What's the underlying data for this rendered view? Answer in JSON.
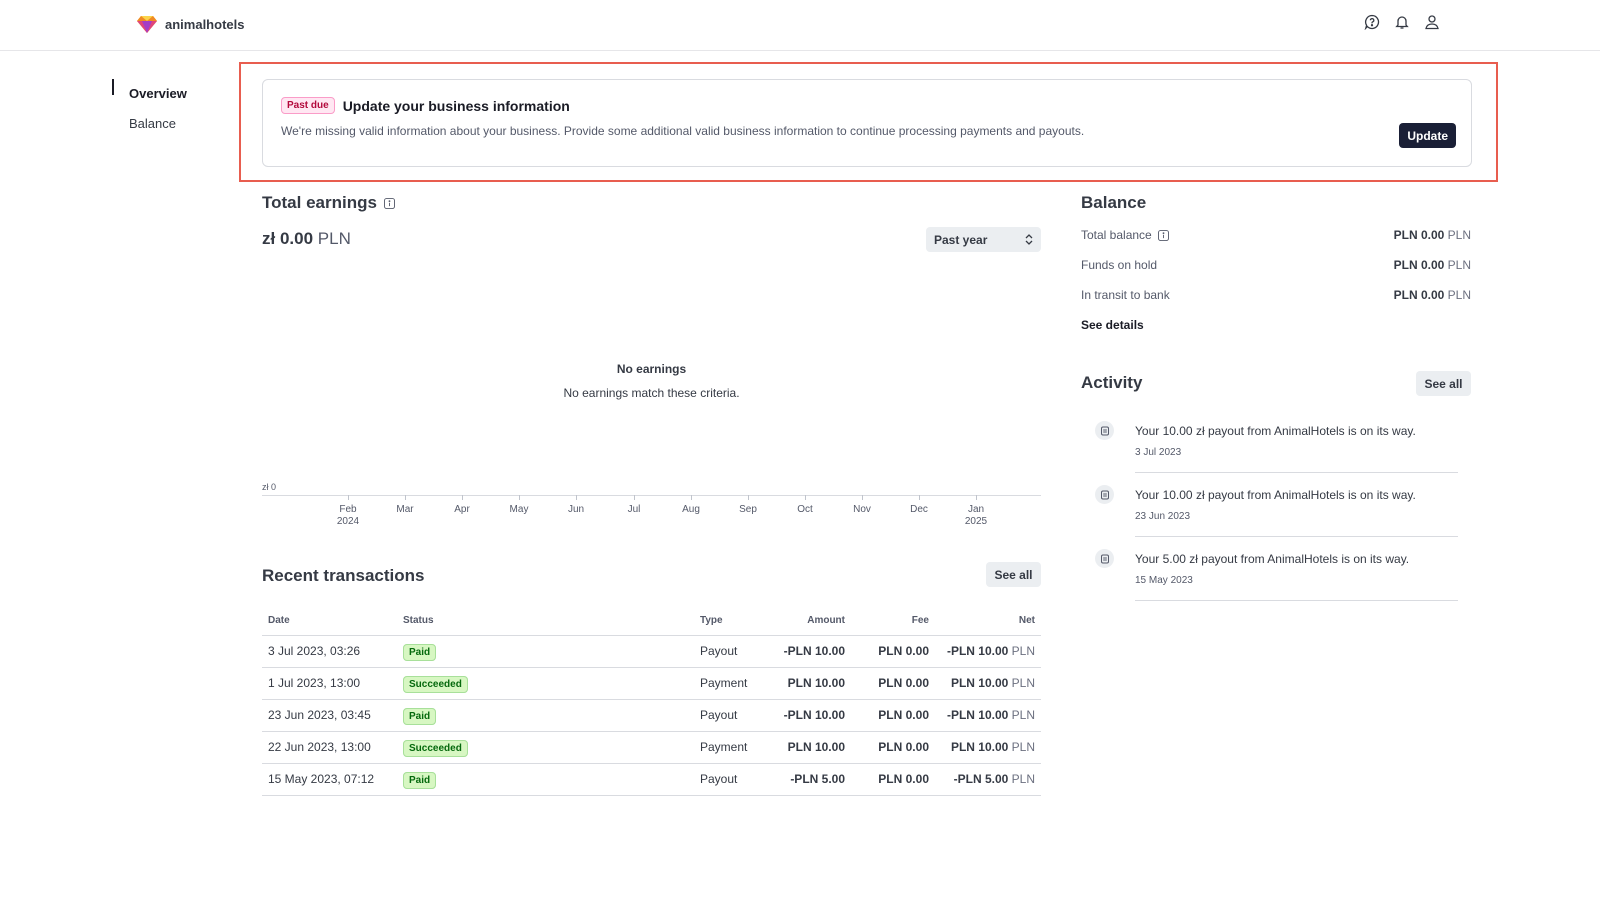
{
  "header": {
    "brand": "animalhotels",
    "icons": [
      "help-icon",
      "bell-icon",
      "user-icon"
    ]
  },
  "sidebar": {
    "items": [
      {
        "label": "Overview",
        "active": true
      },
      {
        "label": "Balance",
        "active": false
      }
    ]
  },
  "alert": {
    "badge": "Past due",
    "title": "Update your business information",
    "text": "We're missing valid information about your business. Provide some additional valid business information to continue processing payments and payouts.",
    "button": "Update"
  },
  "earnings": {
    "title": "Total earnings",
    "amount": "zł 0.00",
    "currency": "PLN",
    "period": "Past year",
    "empty_title": "No earnings",
    "empty_text": "No earnings match these criteria.",
    "y_label": "zł 0",
    "x_ticks": [
      {
        "label": "Feb",
        "sub": "2024"
      },
      {
        "label": "Mar",
        "sub": ""
      },
      {
        "label": "Apr",
        "sub": ""
      },
      {
        "label": "May",
        "sub": ""
      },
      {
        "label": "Jun",
        "sub": ""
      },
      {
        "label": "Jul",
        "sub": ""
      },
      {
        "label": "Aug",
        "sub": ""
      },
      {
        "label": "Sep",
        "sub": ""
      },
      {
        "label": "Oct",
        "sub": ""
      },
      {
        "label": "Nov",
        "sub": ""
      },
      {
        "label": "Dec",
        "sub": ""
      },
      {
        "label": "Jan",
        "sub": "2025"
      }
    ]
  },
  "transactions": {
    "title": "Recent transactions",
    "see_all": "See all",
    "columns": [
      "Date",
      "Status",
      "Type",
      "Amount",
      "Fee",
      "Net"
    ],
    "rows": [
      {
        "date": "3 Jul 2023, 03:26",
        "status": "Paid",
        "type": "Payout",
        "amount": "-PLN 10.00",
        "fee": "PLN 0.00",
        "net": "-PLN 10.00",
        "net_unit": "PLN"
      },
      {
        "date": "1 Jul 2023, 13:00",
        "status": "Succeeded",
        "type": "Payment",
        "amount": "PLN 10.00",
        "fee": "PLN 0.00",
        "net": "PLN 10.00",
        "net_unit": "PLN"
      },
      {
        "date": "23 Jun 2023, 03:45",
        "status": "Paid",
        "type": "Payout",
        "amount": "-PLN 10.00",
        "fee": "PLN 0.00",
        "net": "-PLN 10.00",
        "net_unit": "PLN"
      },
      {
        "date": "22 Jun 2023, 13:00",
        "status": "Succeeded",
        "type": "Payment",
        "amount": "PLN 10.00",
        "fee": "PLN 0.00",
        "net": "PLN 10.00",
        "net_unit": "PLN"
      },
      {
        "date": "15 May 2023, 07:12",
        "status": "Paid",
        "type": "Payout",
        "amount": "-PLN 5.00",
        "fee": "PLN 0.00",
        "net": "-PLN 5.00",
        "net_unit": "PLN"
      }
    ]
  },
  "balance": {
    "title": "Balance",
    "rows": [
      {
        "label": "Total balance",
        "value": "PLN 0.00",
        "unit": "PLN",
        "info": true
      },
      {
        "label": "Funds on hold",
        "value": "PLN 0.00",
        "unit": "PLN",
        "info": false
      },
      {
        "label": "In transit to bank",
        "value": "PLN 0.00",
        "unit": "PLN",
        "info": false
      }
    ],
    "see_details": "See details"
  },
  "activity": {
    "title": "Activity",
    "see_all": "See all",
    "items": [
      {
        "text": "Your 10.00 zł payout from AnimalHotels is on its way.",
        "date": "3 Jul 2023"
      },
      {
        "text": "Your 10.00 zł payout from AnimalHotels is on its way.",
        "date": "23 Jun 2023"
      },
      {
        "text": "Your 5.00 zł payout from AnimalHotels is on its way.",
        "date": "15 May 2023"
      }
    ]
  },
  "colors": {
    "highlight": "#e85d4f",
    "primary_button": "#1a1f36",
    "success_badge_bg": "#d7f7c2",
    "success_badge_text": "#05690d",
    "pastdue_badge_bg": "#ffe7f2",
    "pastdue_badge_text": "#b3093c"
  }
}
